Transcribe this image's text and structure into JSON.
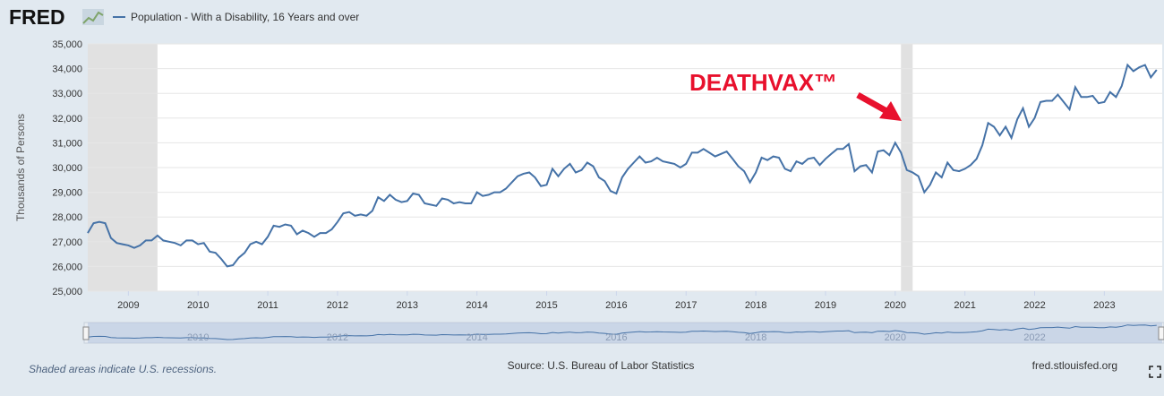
{
  "logo": "FRED",
  "chart_data": {
    "type": "line",
    "series": [
      {
        "name": "Population - With a Disability, 16 Years and over",
        "color": "#4572a7",
        "x": [
          2008.417,
          2008.5,
          2008.583,
          2008.667,
          2008.75,
          2008.833,
          2008.917,
          2009,
          2009.083,
          2009.167,
          2009.25,
          2009.333,
          2009.417,
          2009.5,
          2009.583,
          2009.667,
          2009.75,
          2009.833,
          2009.917,
          2010,
          2010.083,
          2010.167,
          2010.25,
          2010.333,
          2010.417,
          2010.5,
          2010.583,
          2010.667,
          2010.75,
          2010.833,
          2010.917,
          2011,
          2011.083,
          2011.167,
          2011.25,
          2011.333,
          2011.417,
          2011.5,
          2011.583,
          2011.667,
          2011.75,
          2011.833,
          2011.917,
          2012,
          2012.083,
          2012.167,
          2012.25,
          2012.333,
          2012.417,
          2012.5,
          2012.583,
          2012.667,
          2012.75,
          2012.833,
          2012.917,
          2013,
          2013.083,
          2013.167,
          2013.25,
          2013.333,
          2013.417,
          2013.5,
          2013.583,
          2013.667,
          2013.75,
          2013.833,
          2013.917,
          2014,
          2014.083,
          2014.167,
          2014.25,
          2014.333,
          2014.417,
          2014.5,
          2014.583,
          2014.667,
          2014.75,
          2014.833,
          2014.917,
          2015,
          2015.083,
          2015.167,
          2015.25,
          2015.333,
          2015.417,
          2015.5,
          2015.583,
          2015.667,
          2015.75,
          2015.833,
          2015.917,
          2016,
          2016.083,
          2016.167,
          2016.25,
          2016.333,
          2016.417,
          2016.5,
          2016.583,
          2016.667,
          2016.75,
          2016.833,
          2016.917,
          2017,
          2017.083,
          2017.167,
          2017.25,
          2017.333,
          2017.417,
          2017.5,
          2017.583,
          2017.667,
          2017.75,
          2017.833,
          2017.917,
          2018,
          2018.083,
          2018.167,
          2018.25,
          2018.333,
          2018.417,
          2018.5,
          2018.583,
          2018.667,
          2018.75,
          2018.833,
          2018.917,
          2019,
          2019.083,
          2019.167,
          2019.25,
          2019.333,
          2019.417,
          2019.5,
          2019.583,
          2019.667,
          2019.75,
          2019.833,
          2019.917,
          2020,
          2020.083,
          2020.167,
          2020.25,
          2020.333,
          2020.417,
          2020.5,
          2020.583,
          2020.667,
          2020.75,
          2020.833,
          2020.917,
          2021,
          2021.083,
          2021.167,
          2021.25,
          2021.333,
          2021.417,
          2021.5,
          2021.583,
          2021.667,
          2021.75,
          2021.833,
          2021.917,
          2022,
          2022.083,
          2022.167,
          2022.25,
          2022.333,
          2022.417,
          2022.5,
          2022.583,
          2022.667,
          2022.75,
          2022.833,
          2022.917,
          2023,
          2023.083,
          2023.167,
          2023.25,
          2023.333,
          2023.417,
          2023.5,
          2023.583,
          2023.667,
          2023.75
        ],
        "values": [
          27350,
          27750,
          27800,
          27750,
          27150,
          26950,
          26900,
          26850,
          26750,
          26850,
          27050,
          27050,
          27250,
          27050,
          27000,
          26950,
          26850,
          27050,
          27050,
          26900,
          26950,
          26600,
          26550,
          26300,
          26000,
          26050,
          26350,
          26550,
          26900,
          27000,
          26900,
          27200,
          27650,
          27600,
          27700,
          27650,
          27300,
          27450,
          27350,
          27200,
          27350,
          27350,
          27500,
          27800,
          28150,
          28200,
          28050,
          28100,
          28050,
          28250,
          28800,
          28650,
          28900,
          28700,
          28600,
          28650,
          28950,
          28900,
          28550,
          28500,
          28450,
          28750,
          28700,
          28550,
          28600,
          28550,
          28550,
          29000,
          28850,
          28900,
          29000,
          29000,
          29150,
          29400,
          29650,
          29750,
          29800,
          29600,
          29250,
          29300,
          29950,
          29650,
          29950,
          30150,
          29800,
          29900,
          30200,
          30050,
          29600,
          29450,
          29050,
          28950,
          29600,
          29950,
          30200,
          30450,
          30200,
          30250,
          30400,
          30250,
          30200,
          30150,
          30000,
          30150,
          30600,
          30600,
          30750,
          30600,
          30450,
          30550,
          30650,
          30350,
          30050,
          29850,
          29400,
          29800,
          30400,
          30300,
          30450,
          30400,
          29950,
          29850,
          30250,
          30150,
          30350,
          30400,
          30100,
          30350,
          30550,
          30750,
          30750,
          30950,
          29850,
          30050,
          30100,
          29800,
          30650,
          30700,
          30500,
          31000,
          30600,
          29900,
          29800,
          29650,
          29000,
          29300,
          29800,
          29600,
          30200,
          29900,
          29850,
          29950,
          30100,
          30350,
          30900,
          31800,
          31650,
          31300,
          31650,
          31200,
          31950,
          32400,
          31650,
          32000,
          32650,
          32700,
          32700,
          32950,
          32650,
          32350,
          33250,
          32850,
          32850,
          32900,
          32600,
          32650,
          33050,
          32850,
          33300,
          34150,
          33900,
          34050,
          34150,
          33650,
          33950
        ]
      }
    ],
    "recessions": [
      [
        2008.417,
        2009.417
      ],
      [
        2020.083,
        2020.25
      ]
    ],
    "xlim": [
      2008.417,
      2023.83
    ],
    "xticks": [
      2009,
      2010,
      2011,
      2012,
      2013,
      2014,
      2015,
      2016,
      2017,
      2018,
      2019,
      2020,
      2021,
      2022,
      2023
    ],
    "ylim": [
      25000,
      35000
    ],
    "yticks": [
      {
        "value": 25000,
        "label": "25,000"
      },
      {
        "value": 26000,
        "label": "26,000"
      },
      {
        "value": 27000,
        "label": "27,000"
      },
      {
        "value": 28000,
        "label": "28,000"
      },
      {
        "value": 29000,
        "label": "29,000"
      },
      {
        "value": 30000,
        "label": "30,000"
      },
      {
        "value": 31000,
        "label": "31,000"
      },
      {
        "value": 32000,
        "label": "32,000"
      },
      {
        "value": 33000,
        "label": "33,000"
      },
      {
        "value": 34000,
        "label": "34,000"
      },
      {
        "value": 35000,
        "label": "35,000"
      }
    ],
    "grid": true,
    "ylabel": "Thousands of Persons",
    "annotation": "DEATHVAX™",
    "navigator_ticks": [
      2010,
      2012,
      2014,
      2016,
      2018,
      2020,
      2022
    ],
    "note": "Shaded areas indicate U.S. recessions.",
    "source": "Source: U.S. Bureau of Labor Statistics",
    "site": "fred.stlouisfed.org"
  }
}
